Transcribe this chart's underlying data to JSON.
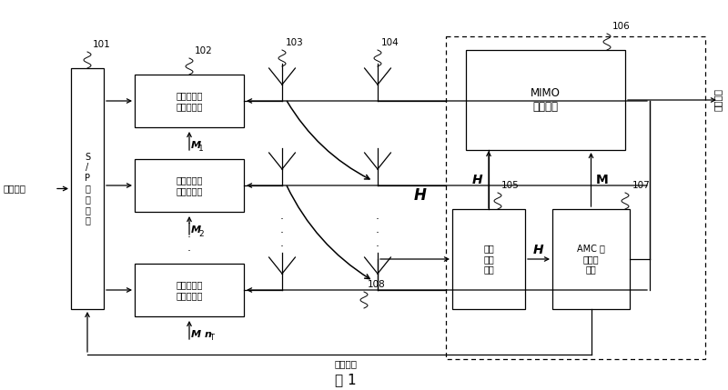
{
  "bg_color": "#ffffff",
  "fig_label": "图 1",
  "labels": {
    "sp": "101",
    "amc_group": "102",
    "tx_ant": "103",
    "rx_ant": "104",
    "ch_est": "105",
    "mimo": "106",
    "amc_param": "107",
    "bot_ant": "108"
  },
  "texts": {
    "send": "发送数据",
    "recv": "接收数据",
    "feedback": "反馈信道",
    "sp_box": "S\n/\nP\n变\n换\n单\n元",
    "amc_box": "自适应调制\n与编码单元",
    "mimo_box": "MIMO\n检测单元",
    "ch_est_box": "信道\n估计\n单元",
    "amc_param_box": "AMC 参\n数选取\n单元"
  },
  "m_labels": [
    "M 1",
    "M 2",
    "M nT"
  ]
}
